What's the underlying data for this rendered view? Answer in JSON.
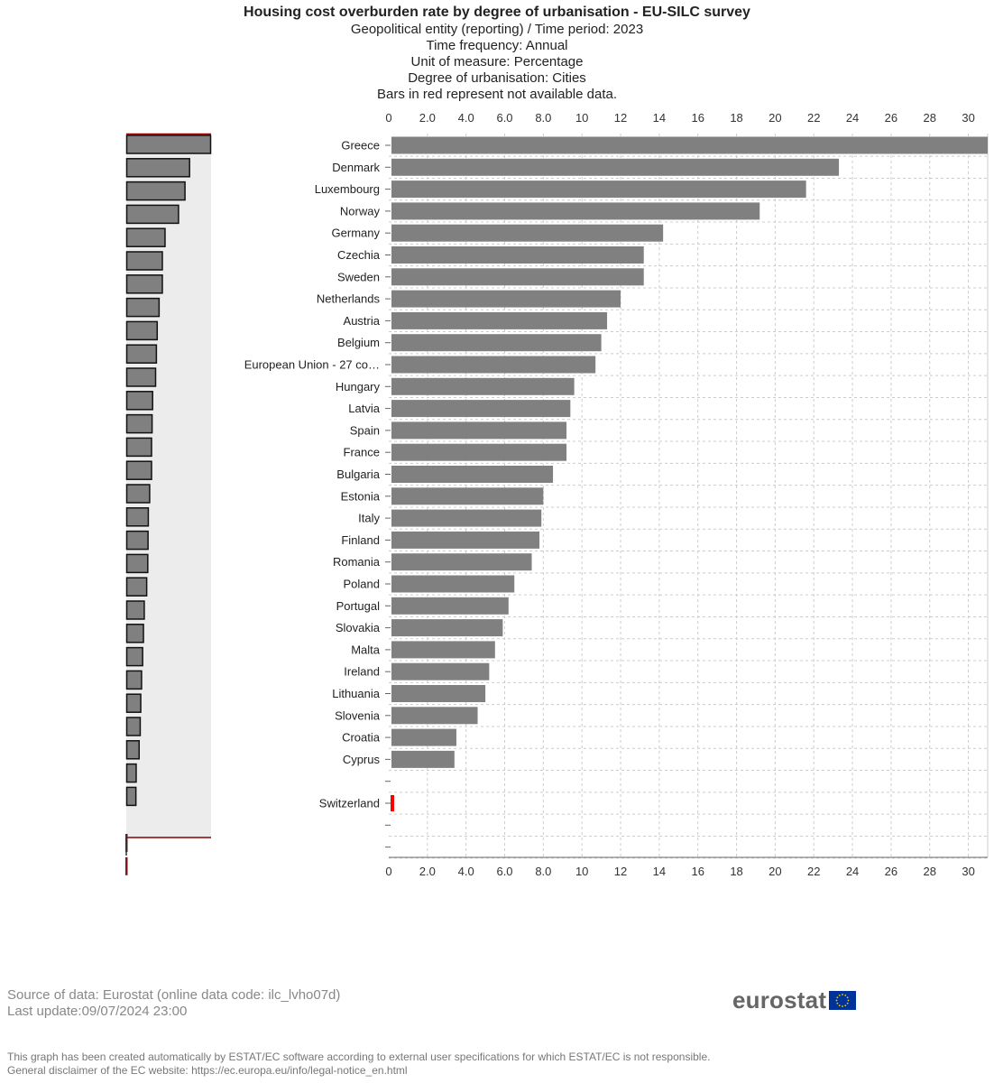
{
  "header": {
    "title": "Housing cost overburden rate by degree of urbanisation - EU-SILC survey",
    "lines": [
      "Geopolitical entity (reporting) / Time period: 2023",
      "Time frequency: Annual",
      "Unit of measure: Percentage",
      "Degree of urbanisation: Cities",
      "Bars in red represent not available data."
    ]
  },
  "chart_data": {
    "type": "bar",
    "orientation": "horizontal",
    "title": "Housing cost overburden rate by degree of urbanisation - EU-SILC survey",
    "xlabel": "",
    "ylabel": "",
    "xlim": [
      0,
      31
    ],
    "ticks": [
      {
        "value": 0,
        "label": "0"
      },
      {
        "value": 2,
        "label": "2.0"
      },
      {
        "value": 4,
        "label": "4.0"
      },
      {
        "value": 6,
        "label": "6.0"
      },
      {
        "value": 8,
        "label": "8.0"
      },
      {
        "value": 10,
        "label": "10"
      },
      {
        "value": 12,
        "label": "12"
      },
      {
        "value": 14,
        "label": "14"
      },
      {
        "value": 16,
        "label": "16"
      },
      {
        "value": 18,
        "label": "18"
      },
      {
        "value": 20,
        "label": "20"
      },
      {
        "value": 22,
        "label": "22"
      },
      {
        "value": 24,
        "label": "24"
      },
      {
        "value": 26,
        "label": "26"
      },
      {
        "value": 28,
        "label": "28"
      },
      {
        "value": 30,
        "label": "30"
      }
    ],
    "categories": [
      "Greece",
      "Denmark",
      "Luxembourg",
      "Norway",
      "Germany",
      "Czechia",
      "Sweden",
      "Netherlands",
      "Austria",
      "Belgium",
      "European Union - 27 co…",
      "Hungary",
      "Latvia",
      "Spain",
      "France",
      "Bulgaria",
      "Estonia",
      "Italy",
      "Finland",
      "Romania",
      "Poland",
      "Portugal",
      "Slovakia",
      "Malta",
      "Ireland",
      "Lithuania",
      "Slovenia",
      "Croatia",
      "Cyprus",
      "",
      "Switzerland",
      "",
      ""
    ],
    "values": [
      31.1,
      23.3,
      21.6,
      19.2,
      14.2,
      13.2,
      13.2,
      12.0,
      11.3,
      11.0,
      10.7,
      9.6,
      9.4,
      9.2,
      9.2,
      8.5,
      8.0,
      7.9,
      7.8,
      7.4,
      6.5,
      6.2,
      5.9,
      5.5,
      5.2,
      5.0,
      4.6,
      3.5,
      3.4,
      null,
      0.25,
      null,
      null
    ],
    "not_available": [
      false,
      false,
      false,
      false,
      false,
      false,
      false,
      false,
      false,
      false,
      false,
      false,
      false,
      false,
      false,
      false,
      false,
      false,
      false,
      false,
      false,
      false,
      false,
      false,
      false,
      false,
      false,
      false,
      false,
      false,
      true,
      false,
      false
    ],
    "bar_color": "#808080",
    "na_color": "#ff0000",
    "grid": true,
    "legend": "none"
  },
  "footer": {
    "source": "Source of data: Eurostat (online data code: ilc_lvho07d)",
    "last_update": "Last update:09/07/2024 23:00",
    "note1": "This graph has been created automatically by ESTAT/EC software according to external user specifications for which ESTAT/EC is not responsible.",
    "note2": "General disclaimer of the EC website: https://ec.europa.eu/info/legal-notice_en.html",
    "logo": "eurostat"
  },
  "colors": {
    "grid": "#cccccc",
    "navigator_bg": "#ececec",
    "navigator_border": "#8b0000",
    "flag_blue": "#003399",
    "flag_star": "#ffcc00"
  }
}
